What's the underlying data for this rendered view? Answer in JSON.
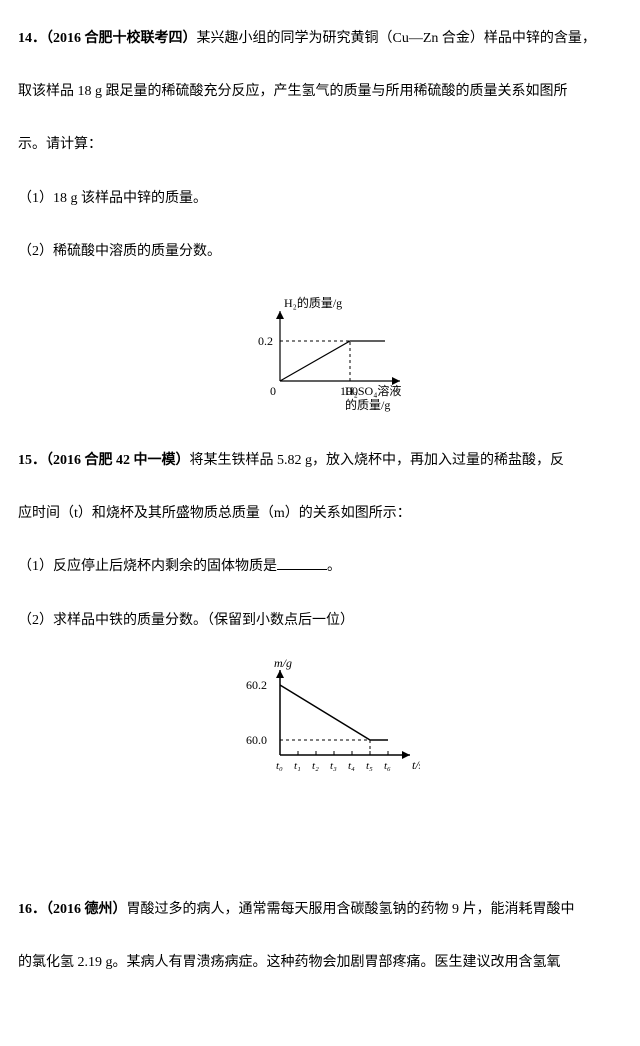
{
  "q14": {
    "number": "14．",
    "source": "（2016 合肥十校联考四）",
    "intro1": "某兴趣小组的同学为研究黄铜（Cu—Zn 合金）样品中锌的含量，",
    "intro2": "取该样品 18 g 跟足量的稀硫酸充分反应，产生氢气的质量与所用稀硫酸的质量关系如图所",
    "intro3": "示。请计算：",
    "part1": "（1）18 g 该样品中锌的质量。",
    "part2": "（2）稀硫酸中溶质的质量分数。",
    "chart": {
      "type": "line",
      "y_label": "H₂的质量/g",
      "x_label_1": "H₂SO₄溶液",
      "x_label_2": "的质量/g",
      "y_tick_label": "0.2",
      "y_tick_value": 0.2,
      "x_tick_label": "100",
      "x_tick_value": 100,
      "origin_label": "0",
      "line_points": [
        [
          0,
          0
        ],
        [
          100,
          0.2
        ],
        [
          150,
          0.2
        ]
      ],
      "axis_color": "#000000",
      "dash_color": "#000000",
      "line_width": 1.2,
      "fontsize": 12
    }
  },
  "q15": {
    "number": "15．",
    "source": "（2016 合肥 42 中一模）",
    "intro1": "将某生铁样品 5.82 g，放入烧杯中，再加入过量的稀盐酸，反",
    "intro2": "应时间（t）和烧杯及其所盛物质总质量（m）的关系如图所示：",
    "part1_pre": "（1）反应停止后烧杯内剩余的固体物质是",
    "part1_post": "。",
    "part2": "（2）求样品中铁的质量分数。（保留到小数点后一位）",
    "chart": {
      "type": "line",
      "y_label": "m/g",
      "x_label": "t/s",
      "y_ticks": [
        {
          "label": "60.2",
          "value": 60.2
        },
        {
          "label": "60.0",
          "value": 60.0
        }
      ],
      "x_ticks": [
        "t₀",
        "t₁",
        "t₂",
        "t₃",
        "t₄",
        "t₅",
        "t₆"
      ],
      "line_points": [
        [
          0,
          60.2
        ],
        [
          5,
          60.0
        ],
        [
          6,
          60.0
        ]
      ],
      "axis_color": "#000000",
      "line_width": 1.5,
      "fontsize": 12
    }
  },
  "q16": {
    "number": "16．",
    "source": "（2016 德州）",
    "intro1": "胃酸过多的病人，通常需每天服用含碳酸氢钠的药物 9 片，能消耗胃酸中",
    "intro2": "的氯化氢 2.19 g。某病人有胃溃疡病症。这种药物会加剧胃部疼痛。医生建议改用含氢氧"
  }
}
